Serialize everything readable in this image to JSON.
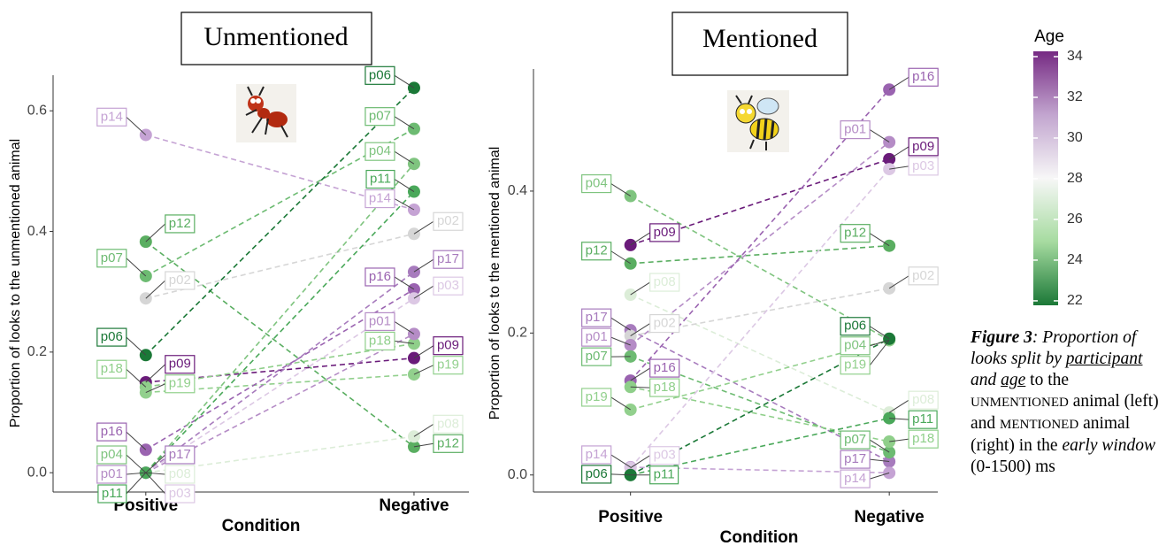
{
  "chart_data": [
    {
      "type": "line",
      "title": "Unmentioned",
      "y_label": "Proportion of looks to the unmentioned animal",
      "x_label": "Condition",
      "categories": [
        "Positive",
        "Negative"
      ],
      "ylim": [
        -0.032,
        0.659
      ],
      "yticks": [
        {
          "value": 0,
          "label": "0.0"
        },
        0.2,
        0.4,
        0.6
      ],
      "series": [
        {
          "name": "p14",
          "color": "#c5a3d4",
          "values": [
            0.56,
            0.436
          ]
        },
        {
          "name": "p12",
          "color": "#5aae61",
          "values": [
            0.383,
            0.043
          ]
        },
        {
          "name": "p07",
          "color": "#6dbb72",
          "values": [
            0.326,
            0.57
          ]
        },
        {
          "name": "p02",
          "color": "#d6d6d6",
          "values": [
            0.289,
            0.396
          ]
        },
        {
          "name": "p06",
          "color": "#1b7837",
          "values": [
            0.195,
            0.638
          ]
        },
        {
          "name": "p09",
          "color": "#6a1b7a",
          "values": [
            0.15,
            0.19
          ]
        },
        {
          "name": "p18",
          "color": "#8fcf8a",
          "values": [
            0.142,
            0.214
          ]
        },
        {
          "name": "p19",
          "color": "#92d08d",
          "values": [
            0.133,
            0.163
          ]
        },
        {
          "name": "p16",
          "color": "#9a63b0",
          "values": [
            0.038,
            0.304
          ]
        },
        {
          "name": "p17",
          "color": "#a77bbd",
          "values": [
            0,
            0.333
          ]
        },
        {
          "name": "p04",
          "color": "#7fc47f",
          "values": [
            0,
            0.512
          ]
        },
        {
          "name": "p08",
          "color": "#dcedd8",
          "values": [
            0,
            0.06
          ]
        },
        {
          "name": "p01",
          "color": "#b58cc6",
          "values": [
            0,
            0.23
          ]
        },
        {
          "name": "p03",
          "color": "#dcc8e4",
          "values": [
            0,
            0.289
          ]
        },
        {
          "name": "p11",
          "color": "#4aa85a",
          "values": [
            0,
            0.466
          ]
        }
      ]
    },
    {
      "type": "line",
      "title": "Mentioned",
      "y_label": "Proportion of looks to the mentioned animal",
      "x_label": "Condition",
      "categories": [
        "Positive",
        "Negative"
      ],
      "ylim": [
        -0.024,
        0.572
      ],
      "yticks": [
        {
          "value": 0,
          "label": "0.0"
        },
        0.2,
        0.4
      ],
      "series": [
        {
          "name": "p04",
          "color": "#7fc47f",
          "values": [
            0.393,
            0.19
          ]
        },
        {
          "name": "p09",
          "color": "#6a1b7a",
          "values": [
            0.324,
            0.445
          ]
        },
        {
          "name": "p12",
          "color": "#5aae61",
          "values": [
            0.298,
            0.323
          ]
        },
        {
          "name": "p08",
          "color": "#dcedd8",
          "values": [
            0.254,
            0.088
          ]
        },
        {
          "name": "p17",
          "color": "#a77bbd",
          "values": [
            0.204,
            0.019
          ]
        },
        {
          "name": "p02",
          "color": "#d6d6d6",
          "values": [
            0.196,
            0.263
          ]
        },
        {
          "name": "p01",
          "color": "#b58cc6",
          "values": [
            0.183,
            0.469
          ]
        },
        {
          "name": "p16",
          "color": "#9a63b0",
          "values": [
            0.133,
            0.543
          ]
        },
        {
          "name": "p07",
          "color": "#6dbb72",
          "values": [
            0.167,
            0.032
          ]
        },
        {
          "name": "p18",
          "color": "#8fcf8a",
          "values": [
            0.124,
            0.047
          ]
        },
        {
          "name": "p19",
          "color": "#92d08d",
          "values": [
            0.092,
            0.19
          ]
        },
        {
          "name": "p11",
          "color": "#4aa85a",
          "values": [
            0,
            0.08
          ]
        },
        {
          "name": "p14",
          "color": "#c5a3d4",
          "values": [
            0.011,
            0.003
          ]
        },
        {
          "name": "p03",
          "color": "#dcc8e4",
          "values": [
            0.01,
            0.431
          ]
        },
        {
          "name": "p06",
          "color": "#1b7837",
          "values": [
            0,
            0.192
          ]
        }
      ]
    }
  ],
  "colorbar": {
    "title": "Age",
    "lim": [
      21.78,
      34.26
    ],
    "ticks": [
      22,
      24,
      26,
      28,
      30,
      32,
      34
    ],
    "colors": [
      "#1b7837",
      "#a6dba0",
      "#f7f7f7",
      "#c2a5cf",
      "#762a83"
    ]
  },
  "caption": [
    "Figure 3",
    ": Proportion of looks split by ",
    "participant",
    " and ",
    "age",
    " to the ",
    "UNMENTIONED",
    " animal (left) and ",
    "MENTIONED",
    " animal (right) in the ",
    "early window",
    " (0-1500) ms"
  ]
}
